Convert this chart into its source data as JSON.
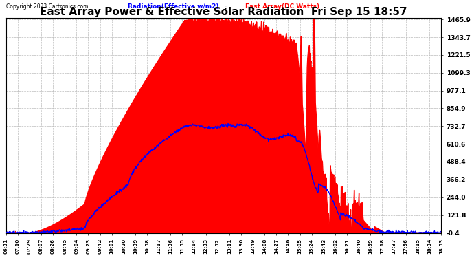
{
  "title": "East Array Power & Effective Solar Radiation  Fri Sep 15 18:57",
  "copyright": "Copyright 2023 Cartronics.com",
  "legend_radiation": "Radiation(Effective w/m2)",
  "legend_east": "East Array(DC Watts)",
  "ymin": -0.4,
  "ymax": 1465.9,
  "yticks": [
    1465.9,
    1343.7,
    1221.5,
    1099.3,
    977.1,
    854.9,
    732.7,
    610.6,
    488.4,
    366.2,
    244.0,
    121.8,
    -0.4
  ],
  "bg_color": "#ffffff",
  "plot_bg_color": "#ffffff",
  "grid_color": "#bbbbbb",
  "radiation_color": "#0000ff",
  "east_array_color": "#ff0000",
  "title_color": "#000000",
  "title_fontsize": 11,
  "xtick_labels": [
    "06:31",
    "07:10",
    "07:29",
    "08:07",
    "08:26",
    "08:45",
    "09:04",
    "09:23",
    "09:42",
    "10:01",
    "10:20",
    "10:39",
    "10:58",
    "11:17",
    "11:36",
    "11:55",
    "12:14",
    "12:33",
    "12:52",
    "13:11",
    "13:30",
    "13:49",
    "14:08",
    "14:27",
    "14:46",
    "15:05",
    "15:24",
    "15:43",
    "16:02",
    "16:21",
    "16:40",
    "16:59",
    "17:18",
    "17:37",
    "17:56",
    "18:15",
    "18:34",
    "18:53"
  ]
}
